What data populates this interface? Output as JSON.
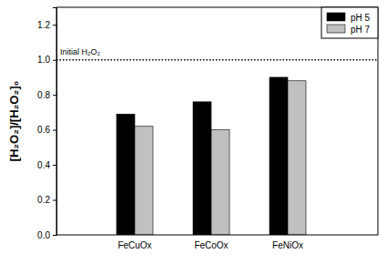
{
  "chart_data": {
    "type": "bar",
    "y_label": "[H₂O₂]/[H₂O₂]₀",
    "categories": [
      "FeCuOx",
      "FeCoOx",
      "FeNiOx"
    ],
    "series": [
      {
        "name": "pH 5",
        "color": "#000000",
        "values": [
          0.69,
          0.76,
          0.9
        ]
      },
      {
        "name": "pH 7",
        "color": "#c0c0c0",
        "values": [
          0.62,
          0.6,
          0.88
        ]
      }
    ],
    "ylim": [
      0,
      1.3
    ],
    "yticks": [
      {
        "value": 0,
        "label": "0.0"
      },
      {
        "value": 0.2,
        "label": "0.2"
      },
      {
        "value": 0.4,
        "label": "0.4"
      },
      {
        "value": 0.6,
        "label": "0.6"
      },
      {
        "value": 0.8,
        "label": "0.8"
      },
      {
        "value": 1.0,
        "label": "1.0"
      },
      {
        "value": 1.2,
        "label": "1.2"
      }
    ],
    "annotations": [
      {
        "text": "Initial H₂O₂",
        "y": 1.0
      }
    ],
    "legend": "upper right",
    "grid": false
  }
}
